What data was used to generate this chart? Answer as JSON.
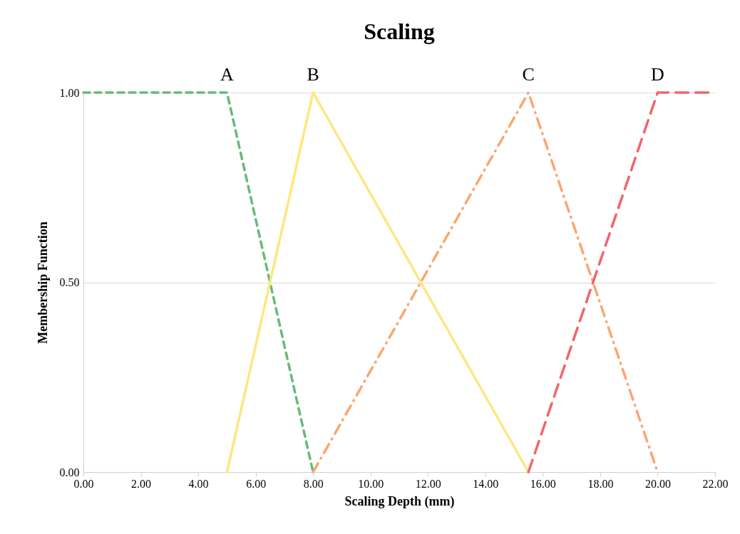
{
  "chart_data": {
    "type": "line",
    "title": "Scaling",
    "xlabel": "Scaling Depth (mm)",
    "ylabel": "Membership Function",
    "series": [
      {
        "name": "A",
        "color": "#66bb77",
        "line_style": "dashed",
        "x": [
          0,
          5,
          8
        ],
        "values": [
          1,
          1,
          0
        ]
      },
      {
        "name": "B",
        "color": "#ffe680",
        "line_style": "solid",
        "x": [
          5,
          8,
          15.5
        ],
        "values": [
          0,
          1,
          0
        ]
      },
      {
        "name": "C",
        "color": "#fca66f",
        "line_style": "dashdot",
        "x": [
          8,
          15.5,
          20
        ],
        "values": [
          0,
          1,
          0
        ]
      },
      {
        "name": "D",
        "color": "#f2656a",
        "line_style": "longdash",
        "x": [
          15.5,
          20,
          22
        ],
        "values": [
          0,
          1,
          1
        ]
      }
    ],
    "xlim": [
      0,
      22
    ],
    "xticks": [
      {
        "value": 0,
        "label": "0.00"
      },
      {
        "value": 2,
        "label": "2.00"
      },
      {
        "value": 4,
        "label": "4.00"
      },
      {
        "value": 6,
        "label": "6.00"
      },
      {
        "value": 8,
        "label": "8.00"
      },
      {
        "value": 10,
        "label": "10.00"
      },
      {
        "value": 12,
        "label": "12.00"
      },
      {
        "value": 14,
        "label": "14.00"
      },
      {
        "value": 16,
        "label": "16.00"
      },
      {
        "value": 18,
        "label": "18.00"
      },
      {
        "value": 20,
        "label": "20.00"
      },
      {
        "value": 22,
        "label": "22.00"
      }
    ],
    "ylim": [
      0,
      1
    ],
    "yticks": [
      {
        "value": 0,
        "label": "0.00"
      },
      {
        "value": 0.5,
        "label": "0.50"
      },
      {
        "value": 1,
        "label": "1.00"
      }
    ],
    "grid": "y"
  }
}
